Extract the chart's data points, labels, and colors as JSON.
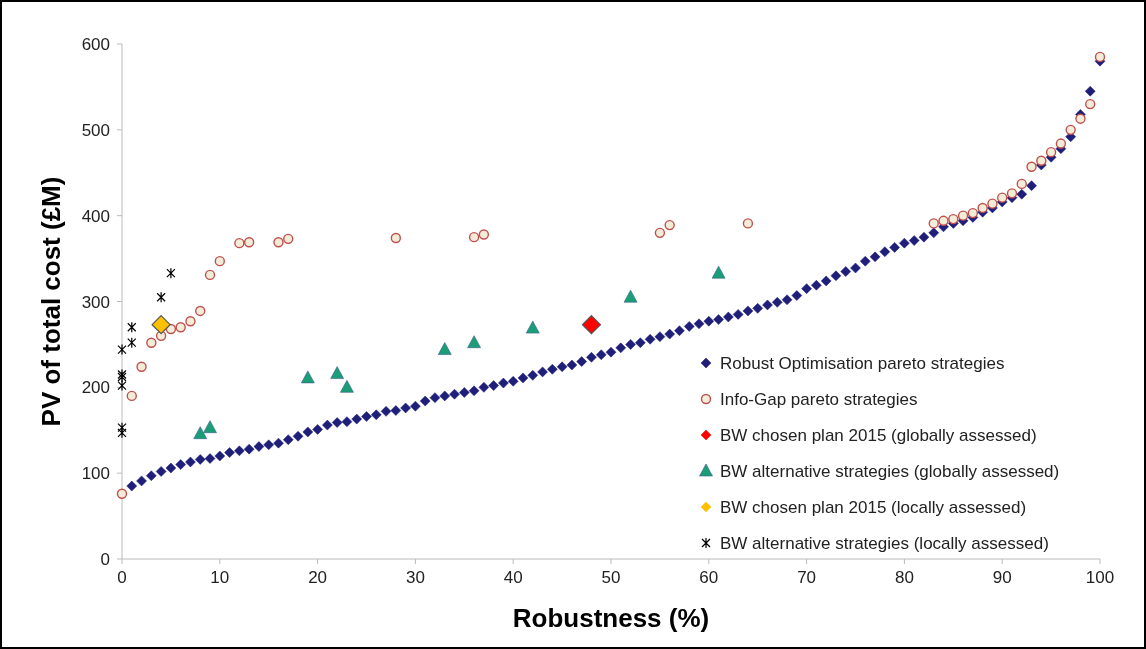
{
  "chart_data": {
    "type": "scatter",
    "xlabel": "Robustness (%)",
    "ylabel": "PV of total cost (£M)",
    "xlim": [
      0,
      100
    ],
    "ylim": [
      0,
      600
    ],
    "xticks": [
      0,
      10,
      20,
      30,
      40,
      50,
      60,
      70,
      80,
      90,
      100
    ],
    "yticks": [
      0,
      100,
      200,
      300,
      400,
      500,
      600
    ],
    "grid": false,
    "legend": "bottom right",
    "series": [
      {
        "name": "Robust Optimisation pareto strategies",
        "color": "#1f1f7a",
        "marker": "diamond",
        "x": [
          1,
          2,
          3,
          4,
          5,
          6,
          7,
          8,
          9,
          10,
          11,
          12,
          13,
          14,
          15,
          16,
          17,
          18,
          19,
          20,
          21,
          22,
          23,
          24,
          25,
          26,
          27,
          28,
          29,
          30,
          31,
          32,
          33,
          34,
          35,
          36,
          37,
          38,
          39,
          40,
          41,
          42,
          43,
          44,
          45,
          46,
          47,
          48,
          49,
          50,
          51,
          52,
          53,
          54,
          55,
          56,
          57,
          58,
          59,
          60,
          61,
          62,
          63,
          64,
          65,
          66,
          67,
          68,
          69,
          70,
          71,
          72,
          73,
          74,
          75,
          76,
          77,
          78,
          79,
          80,
          81,
          82,
          83,
          84,
          85,
          86,
          87,
          88,
          89,
          90,
          91,
          92,
          93,
          94,
          95,
          96,
          97,
          98,
          99,
          100
        ],
        "values": [
          85,
          91,
          97,
          102,
          106,
          110,
          113,
          116,
          117,
          120,
          124,
          126,
          128,
          131,
          133,
          135,
          139,
          143,
          148,
          151,
          156,
          159,
          160,
          163,
          166,
          168,
          172,
          173,
          176,
          178,
          184,
          188,
          190,
          192,
          194,
          196,
          200,
          202,
          205,
          207,
          211,
          214,
          218,
          221,
          224,
          226,
          230,
          235,
          238,
          241,
          246,
          250,
          252,
          256,
          259,
          262,
          266,
          271,
          274,
          277,
          279,
          282,
          285,
          289,
          292,
          296,
          299,
          302,
          307,
          315,
          319,
          324,
          330,
          335,
          339,
          347,
          352,
          358,
          363,
          368,
          371,
          375,
          380,
          387,
          391,
          394,
          398,
          404,
          409,
          416,
          421,
          425,
          435,
          459,
          468,
          478,
          492,
          518,
          545,
          580
        ]
      },
      {
        "name": "Info-Gap pareto strategies",
        "color": "#c0504d",
        "marker": "circle",
        "x": [
          0,
          1,
          2,
          3,
          4,
          5,
          6,
          7,
          8,
          9,
          10,
          12,
          13,
          16,
          17,
          28,
          36,
          37,
          55,
          56,
          64,
          83,
          84,
          85,
          86,
          87,
          88,
          89,
          90,
          91,
          92,
          93,
          94,
          95,
          96,
          97,
          98,
          99,
          100
        ],
        "values": [
          76,
          190,
          224,
          252,
          260,
          268,
          270,
          277,
          289,
          331,
          347,
          368,
          369,
          369,
          373,
          374,
          375,
          378,
          380,
          389,
          391,
          391,
          394,
          396,
          400,
          403,
          409,
          414,
          421,
          426,
          437,
          457,
          464,
          474,
          484,
          500,
          513,
          530,
          585
        ]
      },
      {
        "name": "BW chosen plan 2015 (globally assessed)",
        "color": "#ff0000",
        "marker": "diamond",
        "x": [
          48
        ],
        "values": [
          273
        ]
      },
      {
        "name": "BW alternative strategies (globally assessed)",
        "color": "#1a9e77",
        "marker": "triangle",
        "x": [
          8,
          9,
          19,
          22,
          23,
          33,
          36,
          42,
          52,
          61
        ],
        "values": [
          146,
          153,
          211,
          216,
          200,
          244,
          252,
          269,
          305,
          333
        ]
      },
      {
        "name": "BW chosen plan 2015 (locally assessed)",
        "color": "#ffc000",
        "marker": "diamond",
        "x": [
          4
        ],
        "values": [
          273
        ]
      },
      {
        "name": "BW alternative strategies (locally assessed)",
        "color": "#000000",
        "marker": "cross",
        "x": [
          0,
          0,
          0,
          0,
          0,
          0,
          1,
          1,
          4,
          5
        ],
        "values": [
          244,
          215,
          212,
          202,
          153,
          147,
          270,
          252,
          305,
          333
        ]
      }
    ]
  }
}
